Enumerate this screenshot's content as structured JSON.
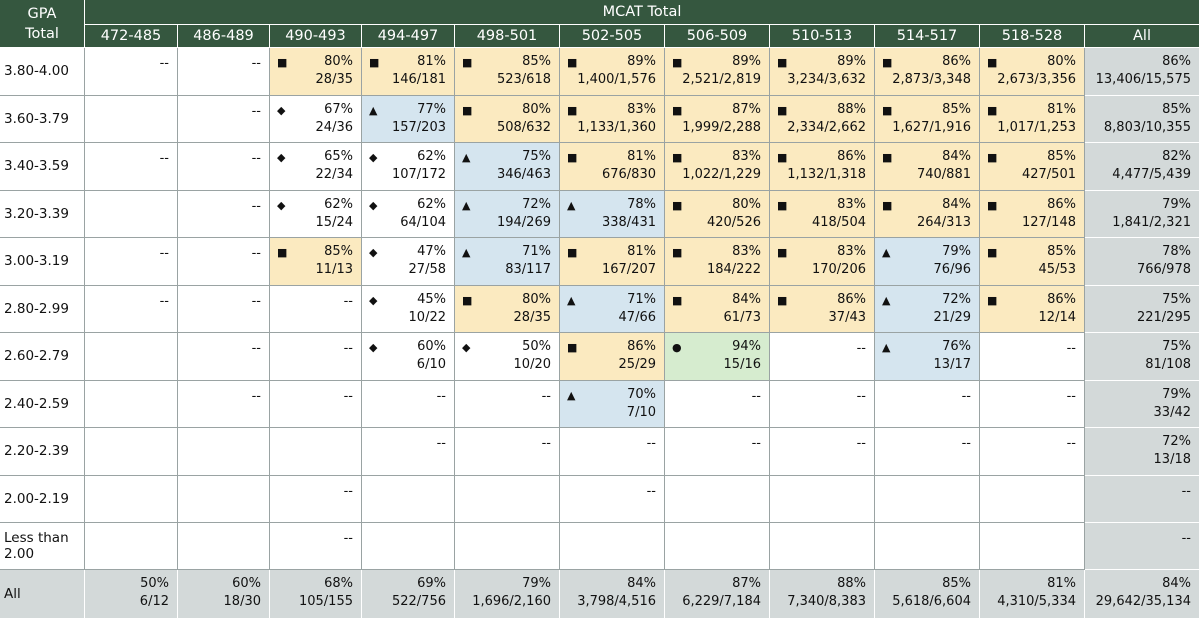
{
  "header": {
    "gpa_label": "GPA Total",
    "mcat_label": "MCAT Total",
    "columns": [
      "472-485",
      "486-489",
      "490-493",
      "494-497",
      "498-501",
      "502-505",
      "506-509",
      "510-513",
      "514-517",
      "518-528",
      "All"
    ]
  },
  "colors": {
    "■": "#fbeac0",
    "▲": "#d5e5ef",
    "◆": "#ffffff",
    "●": "#d6eccf"
  },
  "rows": [
    {
      "label": "3.80-4.00",
      "cells": [
        "--",
        "--",
        {
          "symbol": "■",
          "pct": "80%",
          "frac": "28/35"
        },
        {
          "symbol": "■",
          "pct": "81%",
          "frac": "146/181"
        },
        {
          "symbol": "■",
          "pct": "85%",
          "frac": "523/618"
        },
        {
          "symbol": "■",
          "pct": "89%",
          "frac": "1,400/1,576"
        },
        {
          "symbol": "■",
          "pct": "89%",
          "frac": "2,521/2,819"
        },
        {
          "symbol": "■",
          "pct": "89%",
          "frac": "3,234/3,632"
        },
        {
          "symbol": "■",
          "pct": "86%",
          "frac": "2,873/3,348"
        },
        {
          "symbol": "■",
          "pct": "80%",
          "frac": "2,673/3,356"
        },
        {
          "pct": "86%",
          "frac": "13,406/15,575"
        }
      ]
    },
    {
      "label": "3.60-3.79",
      "cells": [
        null,
        "--",
        {
          "symbol": "◆",
          "pct": "67%",
          "frac": "24/36"
        },
        {
          "symbol": "▲",
          "pct": "77%",
          "frac": "157/203"
        },
        {
          "symbol": "■",
          "pct": "80%",
          "frac": "508/632"
        },
        {
          "symbol": "■",
          "pct": "83%",
          "frac": "1,133/1,360"
        },
        {
          "symbol": "■",
          "pct": "87%",
          "frac": "1,999/2,288"
        },
        {
          "symbol": "■",
          "pct": "88%",
          "frac": "2,334/2,662"
        },
        {
          "symbol": "■",
          "pct": "85%",
          "frac": "1,627/1,916"
        },
        {
          "symbol": "■",
          "pct": "81%",
          "frac": "1,017/1,253"
        },
        {
          "pct": "85%",
          "frac": "8,803/10,355"
        }
      ]
    },
    {
      "label": "3.40-3.59",
      "cells": [
        "--",
        "--",
        {
          "symbol": "◆",
          "pct": "65%",
          "frac": "22/34"
        },
        {
          "symbol": "◆",
          "pct": "62%",
          "frac": "107/172"
        },
        {
          "symbol": "▲",
          "pct": "75%",
          "frac": "346/463"
        },
        {
          "symbol": "■",
          "pct": "81%",
          "frac": "676/830"
        },
        {
          "symbol": "■",
          "pct": "83%",
          "frac": "1,022/1,229"
        },
        {
          "symbol": "■",
          "pct": "86%",
          "frac": "1,132/1,318"
        },
        {
          "symbol": "■",
          "pct": "84%",
          "frac": "740/881"
        },
        {
          "symbol": "■",
          "pct": "85%",
          "frac": "427/501"
        },
        {
          "pct": "82%",
          "frac": "4,477/5,439"
        }
      ]
    },
    {
      "label": "3.20-3.39",
      "cells": [
        null,
        "--",
        {
          "symbol": "◆",
          "pct": "62%",
          "frac": "15/24"
        },
        {
          "symbol": "◆",
          "pct": "62%",
          "frac": "64/104"
        },
        {
          "symbol": "▲",
          "pct": "72%",
          "frac": "194/269"
        },
        {
          "symbol": "▲",
          "pct": "78%",
          "frac": "338/431"
        },
        {
          "symbol": "■",
          "pct": "80%",
          "frac": "420/526"
        },
        {
          "symbol": "■",
          "pct": "83%",
          "frac": "418/504"
        },
        {
          "symbol": "■",
          "pct": "84%",
          "frac": "264/313"
        },
        {
          "symbol": "■",
          "pct": "86%",
          "frac": "127/148"
        },
        {
          "pct": "79%",
          "frac": "1,841/2,321"
        }
      ]
    },
    {
      "label": "3.00-3.19",
      "cells": [
        "--",
        "--",
        {
          "symbol": "■",
          "pct": "85%",
          "frac": "11/13"
        },
        {
          "symbol": "◆",
          "pct": "47%",
          "frac": "27/58"
        },
        {
          "symbol": "▲",
          "pct": "71%",
          "frac": "83/117"
        },
        {
          "symbol": "■",
          "pct": "81%",
          "frac": "167/207"
        },
        {
          "symbol": "■",
          "pct": "83%",
          "frac": "184/222"
        },
        {
          "symbol": "■",
          "pct": "83%",
          "frac": "170/206"
        },
        {
          "symbol": "▲",
          "pct": "79%",
          "frac": "76/96"
        },
        {
          "symbol": "■",
          "pct": "85%",
          "frac": "45/53"
        },
        {
          "pct": "78%",
          "frac": "766/978"
        }
      ]
    },
    {
      "label": "2.80-2.99",
      "cells": [
        "--",
        "--",
        "--",
        {
          "symbol": "◆",
          "pct": "45%",
          "frac": "10/22"
        },
        {
          "symbol": "■",
          "pct": "80%",
          "frac": "28/35"
        },
        {
          "symbol": "▲",
          "pct": "71%",
          "frac": "47/66"
        },
        {
          "symbol": "■",
          "pct": "84%",
          "frac": "61/73"
        },
        {
          "symbol": "■",
          "pct": "86%",
          "frac": "37/43"
        },
        {
          "symbol": "▲",
          "pct": "72%",
          "frac": "21/29"
        },
        {
          "symbol": "■",
          "pct": "86%",
          "frac": "12/14"
        },
        {
          "pct": "75%",
          "frac": "221/295"
        }
      ]
    },
    {
      "label": "2.60-2.79",
      "cells": [
        null,
        "--",
        "--",
        {
          "symbol": "◆",
          "pct": "60%",
          "frac": "6/10"
        },
        {
          "symbol": "◆",
          "pct": "50%",
          "frac": "10/20"
        },
        {
          "symbol": "■",
          "pct": "86%",
          "frac": "25/29"
        },
        {
          "symbol": "●",
          "pct": "94%",
          "frac": "15/16"
        },
        "--",
        {
          "symbol": "▲",
          "pct": "76%",
          "frac": "13/17"
        },
        "--",
        {
          "pct": "75%",
          "frac": "81/108"
        }
      ]
    },
    {
      "label": "2.40-2.59",
      "cells": [
        null,
        "--",
        "--",
        "--",
        "--",
        {
          "symbol": "▲",
          "pct": "70%",
          "frac": "7/10"
        },
        "--",
        "--",
        "--",
        "--",
        {
          "pct": "79%",
          "frac": "33/42"
        }
      ]
    },
    {
      "label": "2.20-2.39",
      "cells": [
        null,
        null,
        null,
        "--",
        "--",
        "--",
        "--",
        "--",
        "--",
        "--",
        {
          "pct": "72%",
          "frac": "13/18"
        }
      ]
    },
    {
      "label": "2.00-2.19",
      "cells": [
        null,
        null,
        "--",
        null,
        null,
        "--",
        null,
        null,
        null,
        null,
        "--"
      ]
    },
    {
      "label": "Less than 2.00",
      "cells": [
        null,
        null,
        "--",
        null,
        null,
        null,
        null,
        null,
        null,
        null,
        "--"
      ]
    },
    {
      "label": "All",
      "cells": [
        {
          "pct": "50%",
          "frac": "6/12"
        },
        {
          "pct": "60%",
          "frac": "18/30"
        },
        {
          "pct": "68%",
          "frac": "105/155"
        },
        {
          "pct": "69%",
          "frac": "522/756"
        },
        {
          "pct": "79%",
          "frac": "1,696/2,160"
        },
        {
          "pct": "84%",
          "frac": "3,798/4,516"
        },
        {
          "pct": "87%",
          "frac": "6,229/7,184"
        },
        {
          "pct": "88%",
          "frac": "7,340/8,383"
        },
        {
          "pct": "85%",
          "frac": "5,618/6,604"
        },
        {
          "pct": "81%",
          "frac": "4,310/5,334"
        },
        {
          "pct": "84%",
          "frac": "29,642/35,134"
        }
      ]
    }
  ]
}
